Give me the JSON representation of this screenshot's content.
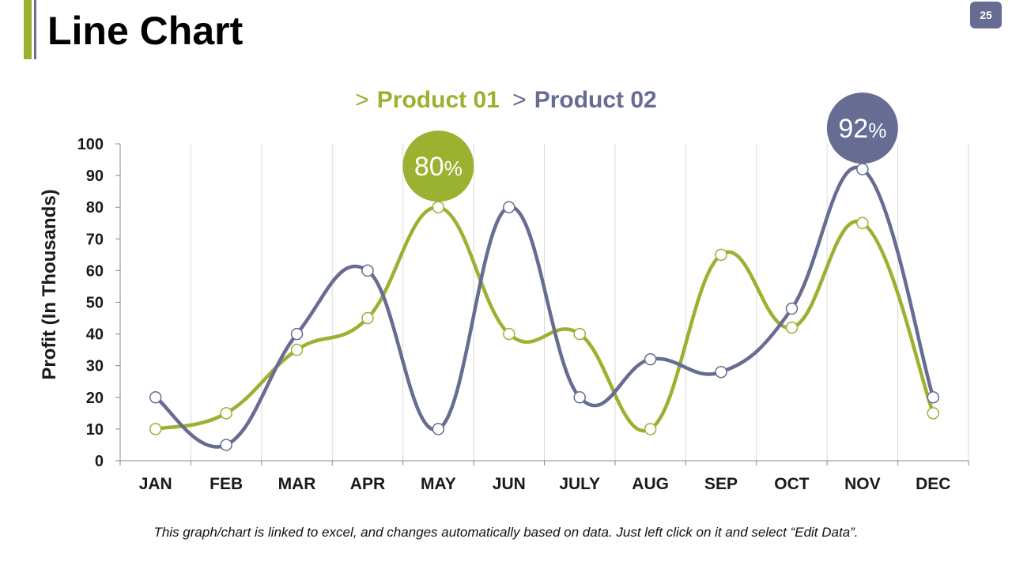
{
  "page": {
    "title": "Line Chart",
    "page_number": "25",
    "footnote": "This graph/chart is linked to excel, and changes automatically based on data. Just left click on it and select “Edit Data”."
  },
  "legend": {
    "marker": ">",
    "items": [
      "Product 01",
      "Product 02"
    ]
  },
  "colors": {
    "product01": "#9bb130",
    "product02": "#676c92",
    "grid": "#d9d9d9"
  },
  "chart_data": {
    "type": "line",
    "title": "",
    "xlabel": "",
    "ylabel": "Profit (In Thousands)",
    "ylim": [
      0,
      100
    ],
    "yticks": [
      0,
      10,
      20,
      30,
      40,
      50,
      60,
      70,
      80,
      90,
      100
    ],
    "categories": [
      "JAN",
      "FEB",
      "MAR",
      "APR",
      "MAY",
      "JUN",
      "JULY",
      "AUG",
      "SEP",
      "OCT",
      "NOV",
      "DEC"
    ],
    "series": [
      {
        "name": "Product 01",
        "values": [
          10,
          15,
          35,
          45,
          80,
          40,
          40,
          10,
          65,
          42,
          75,
          15
        ]
      },
      {
        "name": "Product 02",
        "values": [
          20,
          5,
          40,
          60,
          10,
          80,
          20,
          32,
          28,
          48,
          92,
          20
        ]
      }
    ],
    "annotations": [
      {
        "series": "Product 01",
        "category": "MAY",
        "value": "80",
        "unit": "%"
      },
      {
        "series": "Product 02",
        "category": "NOV",
        "value": "92",
        "unit": "%"
      }
    ]
  }
}
